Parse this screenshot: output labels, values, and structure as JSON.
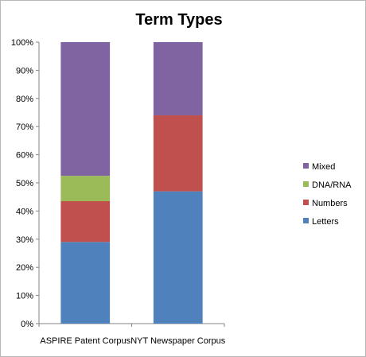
{
  "chart_data": {
    "type": "bar",
    "stacked": true,
    "normalized": true,
    "title": "Term Types",
    "xlabel": "",
    "ylabel": "",
    "ylim": [
      0,
      100
    ],
    "y_tick_labels": [
      "0%",
      "10%",
      "20%",
      "30%",
      "40%",
      "50%",
      "60%",
      "70%",
      "80%",
      "90%",
      "100%"
    ],
    "categories": [
      "ASPIRE Patent Corpus",
      "NYT Newspaper Corpus"
    ],
    "series": [
      {
        "name": "Letters",
        "color": "#4f81bd",
        "values": [
          29,
          47
        ]
      },
      {
        "name": "Numbers",
        "color": "#c0504d",
        "values": [
          14.5,
          27
        ]
      },
      {
        "name": "DNA/RNA",
        "color": "#9bbb59",
        "values": [
          9,
          0
        ]
      },
      {
        "name": "Mixed",
        "color": "#8064a2",
        "values": [
          47.5,
          26
        ]
      }
    ],
    "legend": {
      "position": "right",
      "order": [
        "Mixed",
        "DNA/RNA",
        "Numbers",
        "Letters"
      ]
    },
    "grid": false
  }
}
